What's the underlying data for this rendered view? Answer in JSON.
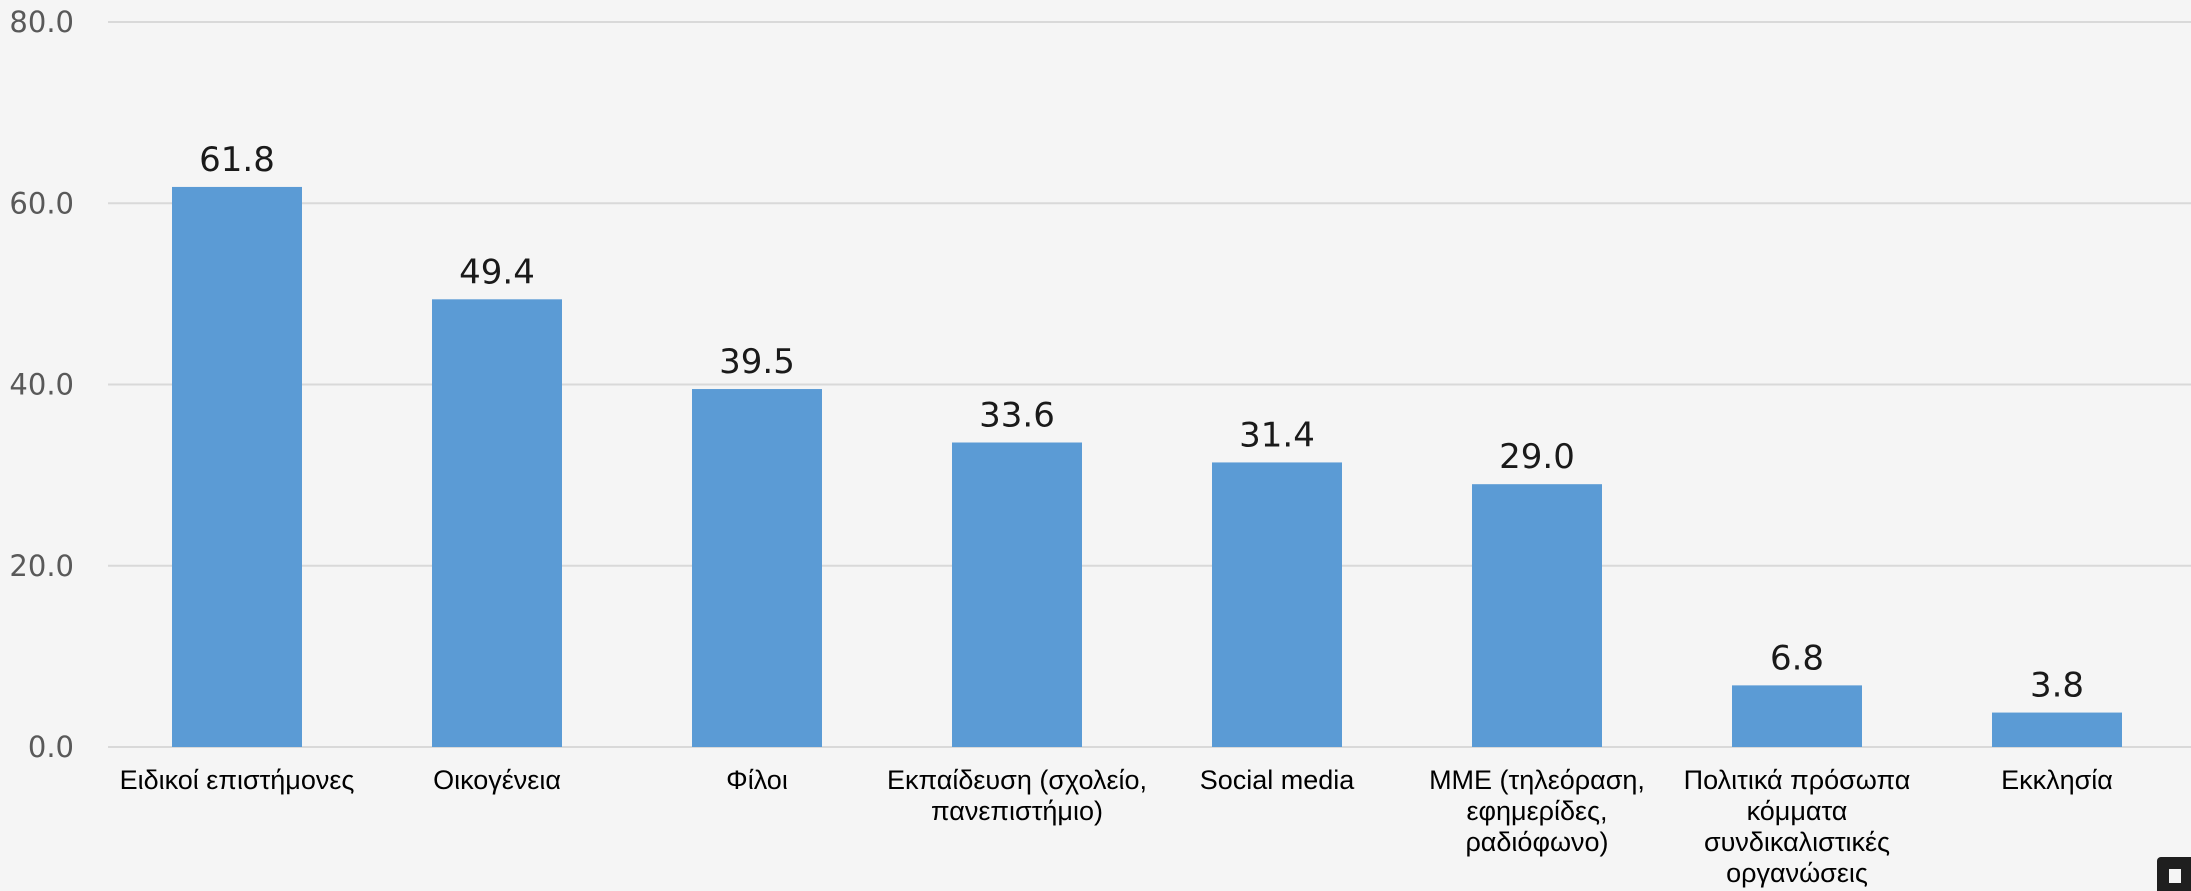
{
  "chart_data": {
    "type": "bar",
    "title": "",
    "xlabel": "",
    "ylabel": "",
    "ylim": [
      0,
      80
    ],
    "yticks": [
      "0.0",
      "20.0",
      "40.0",
      "60.0",
      "80.0"
    ],
    "grid": true,
    "legend": "none",
    "bar_color": "#5b9bd5",
    "categories": [
      [
        "Ειδικοί επιστήμονες"
      ],
      [
        "Οικογένεια"
      ],
      [
        "Φίλοι"
      ],
      [
        "Εκπαίδευση (σχολείο,",
        "πανεπιστήμιο)"
      ],
      [
        "Social media"
      ],
      [
        "ΜΜΕ (τηλεόραση,",
        "εφημερίδες,",
        "ραδιόφωνο)"
      ],
      [
        "Πολιτικά πρόσωπα",
        "κόμματα",
        "συνδικαλιστικές",
        "οργανώσεις"
      ],
      [
        "Εκκλησία"
      ]
    ],
    "values": [
      61.8,
      49.4,
      39.5,
      33.6,
      31.4,
      29.0,
      6.8,
      3.8
    ],
    "value_labels": [
      "61.8",
      "49.4",
      "39.5",
      "33.6",
      "31.4",
      "29.0",
      "6.8",
      "3.8"
    ]
  }
}
